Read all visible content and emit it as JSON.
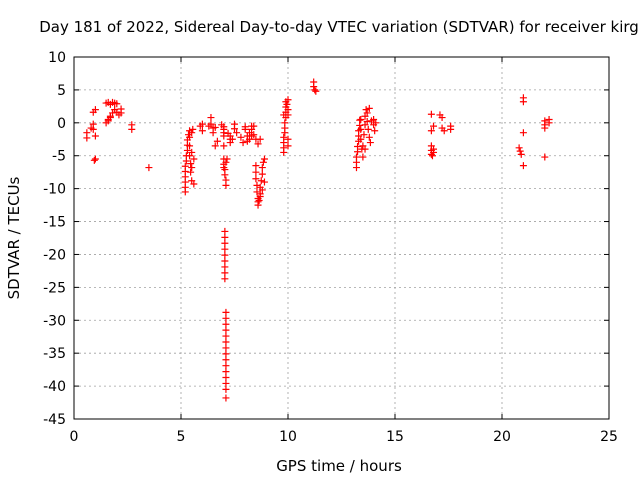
{
  "chart_data": {
    "type": "scatter",
    "title": "Day 181 of 2022, Sidereal Day-to-day VTEC variation (SDTVAR) for receiver kirg",
    "xlabel": "GPS time / hours",
    "ylabel": "SDTVAR / TECUs",
    "xlim": [
      0,
      25
    ],
    "ylim": [
      -45,
      10
    ],
    "xticks": [
      "0",
      "5",
      "10",
      "15",
      "20",
      "25"
    ],
    "yticks": [
      "10",
      "5",
      "0",
      "-5",
      "-10",
      "-15",
      "-20",
      "-25",
      "-30",
      "-35",
      "-40",
      "-45"
    ],
    "grid": true,
    "marker": "plus",
    "color": "#ff0000",
    "series": [
      {
        "name": "SDTVAR",
        "points": [
          [
            0.6,
            -1.5
          ],
          [
            0.6,
            -2.3
          ],
          [
            0.8,
            -0.8
          ],
          [
            0.9,
            -0.2
          ],
          [
            0.9,
            1.6
          ],
          [
            1.0,
            2.0
          ],
          [
            0.9,
            -1.0
          ],
          [
            1.0,
            -5.5
          ],
          [
            0.95,
            -5.7
          ],
          [
            1.0,
            -2.0
          ],
          [
            1.5,
            3.0
          ],
          [
            1.6,
            3.1
          ],
          [
            1.7,
            2.8
          ],
          [
            1.8,
            3.1
          ],
          [
            1.9,
            3.0
          ],
          [
            2.0,
            2.9
          ],
          [
            1.6,
            0.3
          ],
          [
            1.7,
            0.8
          ],
          [
            1.8,
            1.5
          ],
          [
            1.9,
            2.0
          ],
          [
            2.0,
            1.6
          ],
          [
            2.1,
            1.2
          ],
          [
            2.2,
            1.5
          ],
          [
            2.2,
            2.1
          ],
          [
            1.5,
            0.0
          ],
          [
            1.6,
            0.5
          ],
          [
            1.7,
            1.0
          ],
          [
            2.7,
            -0.3
          ],
          [
            2.7,
            -1.0
          ],
          [
            3.5,
            -6.8
          ],
          [
            5.2,
            -10.5
          ],
          [
            5.2,
            -9.8
          ],
          [
            5.2,
            -9.0
          ],
          [
            5.2,
            -8.2
          ],
          [
            5.2,
            -7.4
          ],
          [
            5.2,
            -6.6
          ],
          [
            5.25,
            -5.8
          ],
          [
            5.25,
            -5.0
          ],
          [
            5.3,
            -4.2
          ],
          [
            5.3,
            -3.4
          ],
          [
            5.3,
            -2.6
          ],
          [
            5.35,
            -1.8
          ],
          [
            5.4,
            -1.2
          ],
          [
            5.4,
            -2.2
          ],
          [
            5.4,
            -3.5
          ],
          [
            5.4,
            -5.0
          ],
          [
            5.45,
            -6.2
          ],
          [
            5.45,
            -7.5
          ],
          [
            5.5,
            -8.8
          ],
          [
            5.5,
            -4.5
          ],
          [
            5.5,
            -1.5
          ],
          [
            5.55,
            -1.0
          ],
          [
            5.5,
            -6.8
          ],
          [
            5.6,
            -9.3
          ],
          [
            5.6,
            -5.5
          ],
          [
            5.9,
            -0.5
          ],
          [
            6.0,
            -0.2
          ],
          [
            6.0,
            -1.2
          ],
          [
            6.3,
            -0.5
          ],
          [
            6.4,
            0.8
          ],
          [
            6.4,
            -0.2
          ],
          [
            6.5,
            -1.5
          ],
          [
            6.5,
            -0.8
          ],
          [
            6.6,
            -0.7
          ],
          [
            6.6,
            -3.5
          ],
          [
            6.7,
            -2.8
          ],
          [
            6.9,
            -0.3
          ],
          [
            7.0,
            -0.6
          ],
          [
            7.0,
            -1.0
          ],
          [
            7.0,
            -1.5
          ],
          [
            7.0,
            -2.0
          ],
          [
            7.0,
            -3.5
          ],
          [
            7.0,
            -5.5
          ],
          [
            7.0,
            -6.3
          ],
          [
            7.05,
            -7.1
          ],
          [
            7.05,
            -7.9
          ],
          [
            7.1,
            -8.7
          ],
          [
            7.1,
            -9.5
          ],
          [
            7.1,
            -6.0
          ],
          [
            7.15,
            -5.5
          ],
          [
            7.0,
            -6.8
          ],
          [
            7.05,
            -16.5
          ],
          [
            7.05,
            -17.4
          ],
          [
            7.05,
            -18.3
          ],
          [
            7.05,
            -19.2
          ],
          [
            7.05,
            -20.1
          ],
          [
            7.05,
            -21.0
          ],
          [
            7.05,
            -21.9
          ],
          [
            7.05,
            -22.8
          ],
          [
            7.05,
            -23.7
          ],
          [
            7.1,
            -28.8
          ],
          [
            7.1,
            -29.7
          ],
          [
            7.1,
            -30.6
          ],
          [
            7.1,
            -31.5
          ],
          [
            7.1,
            -32.4
          ],
          [
            7.1,
            -33.3
          ],
          [
            7.1,
            -34.2
          ],
          [
            7.1,
            -35.1
          ],
          [
            7.1,
            -36.0
          ],
          [
            7.1,
            -36.9
          ],
          [
            7.1,
            -37.8
          ],
          [
            7.1,
            -38.7
          ],
          [
            7.1,
            -39.6
          ],
          [
            7.1,
            -40.5
          ],
          [
            7.1,
            -41.8
          ],
          [
            7.2,
            -1.6
          ],
          [
            7.3,
            -2.0
          ],
          [
            7.3,
            -2.5
          ],
          [
            7.3,
            -3.0
          ],
          [
            7.4,
            -2.5
          ],
          [
            7.5,
            -0.2
          ],
          [
            7.5,
            -0.9
          ],
          [
            7.6,
            -1.5
          ],
          [
            7.8,
            -2.2
          ],
          [
            7.9,
            -3.0
          ],
          [
            8.0,
            -1.0
          ],
          [
            8.0,
            -0.6
          ],
          [
            8.1,
            -2.0
          ],
          [
            8.1,
            -2.8
          ],
          [
            8.2,
            -2.5
          ],
          [
            8.2,
            -1.5
          ],
          [
            8.3,
            -1.0
          ],
          [
            8.3,
            -0.5
          ],
          [
            8.4,
            -0.5
          ],
          [
            8.3,
            -2.0
          ],
          [
            8.4,
            -1.8
          ],
          [
            8.5,
            -2.5
          ],
          [
            8.6,
            -3.2
          ],
          [
            8.7,
            -2.5
          ],
          [
            8.5,
            -6.5
          ],
          [
            8.5,
            -7.5
          ],
          [
            8.5,
            -8.5
          ],
          [
            8.55,
            -9.5
          ],
          [
            8.55,
            -10.5
          ],
          [
            8.6,
            -11.5
          ],
          [
            8.6,
            -12.5
          ],
          [
            8.65,
            -11.8
          ],
          [
            8.7,
            -10.8
          ],
          [
            8.7,
            -9.8
          ],
          [
            8.75,
            -8.8
          ],
          [
            8.8,
            -7.8
          ],
          [
            8.8,
            -6.8
          ],
          [
            8.85,
            -6.0
          ],
          [
            8.9,
            -5.5
          ],
          [
            8.6,
            -12.0
          ],
          [
            8.7,
            -11.2
          ],
          [
            8.8,
            -10.2
          ],
          [
            8.9,
            -9.0
          ],
          [
            9.8,
            -4.5
          ],
          [
            9.8,
            -3.8
          ],
          [
            9.8,
            -3.0
          ],
          [
            9.8,
            -2.2
          ],
          [
            9.85,
            -1.5
          ],
          [
            9.85,
            -0.8
          ],
          [
            9.85,
            0.0
          ],
          [
            9.9,
            0.8
          ],
          [
            9.9,
            1.6
          ],
          [
            9.9,
            2.4
          ],
          [
            9.9,
            3.2
          ],
          [
            9.95,
            2.8
          ],
          [
            10.0,
            2.0
          ],
          [
            10.0,
            1.2
          ],
          [
            10.0,
            -2.5
          ],
          [
            10.0,
            -3.5
          ],
          [
            10.0,
            3.5
          ],
          [
            9.8,
            1.2
          ],
          [
            11.2,
            6.2
          ],
          [
            11.2,
            5.5
          ],
          [
            11.25,
            5.0
          ],
          [
            11.3,
            4.8
          ],
          [
            13.2,
            -6.8
          ],
          [
            13.2,
            -6.0
          ],
          [
            13.2,
            -5.2
          ],
          [
            13.25,
            -4.4
          ],
          [
            13.25,
            -3.6
          ],
          [
            13.3,
            -2.8
          ],
          [
            13.3,
            -2.0
          ],
          [
            13.3,
            -1.2
          ],
          [
            13.35,
            -0.4
          ],
          [
            13.35,
            0.4
          ],
          [
            13.4,
            0.5
          ],
          [
            13.4,
            -1.0
          ],
          [
            13.4,
            -2.5
          ],
          [
            13.45,
            -4.0
          ],
          [
            13.5,
            -5.2
          ],
          [
            13.5,
            -3.5
          ],
          [
            13.55,
            -1.8
          ],
          [
            13.6,
            -0.3
          ],
          [
            13.6,
            1.0
          ],
          [
            13.65,
            2.0
          ],
          [
            13.7,
            1.5
          ],
          [
            13.7,
            0.2
          ],
          [
            13.75,
            -1.0
          ],
          [
            13.8,
            -2.2
          ],
          [
            13.85,
            -3.0
          ],
          [
            13.6,
            -4.0
          ],
          [
            13.9,
            0.3
          ],
          [
            14.0,
            0.5
          ],
          [
            14.0,
            -0.3
          ],
          [
            14.05,
            -1.2
          ],
          [
            14.1,
            0.0
          ],
          [
            13.8,
            2.2
          ],
          [
            16.7,
            1.3
          ],
          [
            16.7,
            -1.2
          ],
          [
            16.8,
            -0.5
          ],
          [
            16.7,
            -3.5
          ],
          [
            16.7,
            -4.2
          ],
          [
            16.7,
            -4.8
          ],
          [
            16.75,
            -5.0
          ],
          [
            16.8,
            -4.5
          ],
          [
            16.8,
            -4.0
          ],
          [
            17.1,
            1.2
          ],
          [
            17.2,
            0.8
          ],
          [
            17.2,
            -0.8
          ],
          [
            17.3,
            -1.2
          ],
          [
            17.6,
            -0.5
          ],
          [
            17.6,
            -1.0
          ],
          [
            20.8,
            -3.8
          ],
          [
            20.85,
            -4.3
          ],
          [
            20.9,
            -4.8
          ],
          [
            21.0,
            3.8
          ],
          [
            21.0,
            3.2
          ],
          [
            21.0,
            -1.5
          ],
          [
            21.0,
            -6.5
          ],
          [
            22.0,
            0.3
          ],
          [
            22.0,
            -0.3
          ],
          [
            22.0,
            -0.8
          ],
          [
            22.0,
            -5.2
          ],
          [
            22.2,
            0.5
          ],
          [
            22.2,
            0.0
          ]
        ]
      }
    ]
  }
}
